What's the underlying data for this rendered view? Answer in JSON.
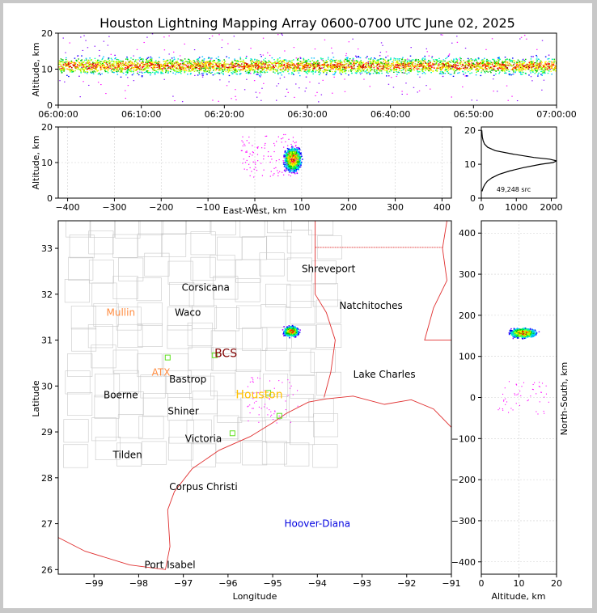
{
  "title": "Houston Lightning Mapping Array 0600-0700 UTC June 02, 2025",
  "chart_data": [
    {
      "name": "altitude-time",
      "type": "scatter",
      "ylabel": "Altitude, km",
      "xlim": [
        "06:00:00",
        "07:00:00"
      ],
      "ylim": [
        0,
        20
      ],
      "xticks": [
        "06:00:00",
        "06:10:00",
        "06:20:00",
        "06:30:00",
        "06:40:00",
        "06:50:00",
        "07:00:00"
      ],
      "yticks": [
        "0",
        "10",
        "20"
      ],
      "band_altitude_km": [
        6,
        15
      ],
      "peak_altitude_km": 11
    },
    {
      "name": "altitude-eastwest",
      "type": "scatter",
      "xlabel": "East-West, km",
      "ylabel": "Altitude, km",
      "xlim": [
        -420,
        420
      ],
      "ylim": [
        0,
        20
      ],
      "xticks": [
        "−400",
        "−300",
        "−200",
        "−100",
        "0",
        "100",
        "200",
        "300",
        "400"
      ],
      "yticks": [
        "0",
        "10",
        "20"
      ],
      "cluster_east_west_km": [
        65,
        135
      ],
      "cluster_center_km": 80
    },
    {
      "name": "altitude-histogram",
      "type": "line",
      "xlim": [
        0,
        2150
      ],
      "ylim": [
        0,
        21
      ],
      "xticks": [
        "0",
        "1000",
        "2000"
      ],
      "yticks": [
        "0",
        "10",
        "20"
      ],
      "annotation": "49,248 src",
      "altitude_km": [
        2,
        3,
        4,
        5,
        6,
        7,
        8,
        9,
        10,
        10.5,
        11,
        11.5,
        12,
        13,
        14,
        15,
        16,
        17,
        18,
        19,
        20
      ],
      "source_counts": [
        20,
        50,
        100,
        170,
        300,
        500,
        800,
        1200,
        1700,
        2050,
        2150,
        1950,
        1500,
        900,
        400,
        180,
        90,
        50,
        30,
        20,
        15
      ]
    },
    {
      "name": "plan-view-map",
      "type": "scatter",
      "xlabel": "Longitude",
      "ylabel": "Latitude",
      "xlim": [
        -99.8,
        -91
      ],
      "ylim": [
        25.9,
        33.6
      ],
      "xticks": [
        "−99",
        "−98",
        "−97",
        "−96",
        "−95",
        "−94",
        "−93",
        "−92",
        "−91"
      ],
      "yticks": [
        "26",
        "27",
        "28",
        "29",
        "30",
        "31",
        "32",
        "33"
      ],
      "storm_center": {
        "lon": -94.6,
        "lat": 31.2
      },
      "cities": [
        {
          "name": "Shreveport",
          "lon": -93.75,
          "lat": 32.55,
          "color": "#000000"
        },
        {
          "name": "Corsicana",
          "lon": -96.5,
          "lat": 32.15,
          "color": "#000000"
        },
        {
          "name": "Natchitoches",
          "lon": -92.8,
          "lat": 31.75,
          "color": "#000000"
        },
        {
          "name": "Mullin",
          "lon": -98.4,
          "lat": 31.6,
          "color": "#ff8c40"
        },
        {
          "name": "Waco",
          "lon": -96.9,
          "lat": 31.6,
          "color": "#000000"
        },
        {
          "name": "BCS",
          "lon": -96.05,
          "lat": 30.7,
          "color": "#800000"
        },
        {
          "name": "ATX",
          "lon": -97.5,
          "lat": 30.3,
          "color": "#ff8c40"
        },
        {
          "name": "Bastrop",
          "lon": -96.9,
          "lat": 30.15,
          "color": "#000000"
        },
        {
          "name": "Lake Charles",
          "lon": -92.5,
          "lat": 30.25,
          "color": "#000000"
        },
        {
          "name": "Boerne",
          "lon": -98.4,
          "lat": 29.8,
          "color": "#000000"
        },
        {
          "name": "Houston",
          "lon": -95.3,
          "lat": 29.8,
          "color": "#ffc000"
        },
        {
          "name": "Shiner",
          "lon": -97.0,
          "lat": 29.45,
          "color": "#000000"
        },
        {
          "name": "Victoria",
          "lon": -96.55,
          "lat": 28.85,
          "color": "#000000"
        },
        {
          "name": "Tilden",
          "lon": -98.25,
          "lat": 28.5,
          "color": "#000000"
        },
        {
          "name": "Corpus Christi",
          "lon": -96.55,
          "lat": 27.8,
          "color": "#000000"
        },
        {
          "name": "Hoover-Diana",
          "lon": -94.0,
          "lat": 27.0,
          "color": "#0000e0"
        },
        {
          "name": "Port Isabel",
          "lon": -97.3,
          "lat": 26.1,
          "color": "#000000"
        }
      ],
      "stations": [
        {
          "lon": -97.35,
          "lat": 30.62
        },
        {
          "lon": -96.3,
          "lat": 30.67
        },
        {
          "lon": -95.9,
          "lat": 28.97
        },
        {
          "lon": -94.85,
          "lat": 29.35
        },
        {
          "lon": -95.1,
          "lat": 29.85
        }
      ]
    },
    {
      "name": "northsouth-altitude",
      "type": "scatter",
      "xlabel": "Altitude, km",
      "ylabel": "North-South, km",
      "xlim": [
        0,
        20
      ],
      "ylim": [
        -430,
        430
      ],
      "xticks": [
        "0",
        "10",
        "20"
      ],
      "yticks": [
        "−400",
        "−300",
        "−200",
        "−100",
        "0",
        "100",
        "200",
        "300",
        "400"
      ],
      "cluster_north_south_km": [
        130,
        185
      ],
      "cluster_center_km": 158
    }
  ]
}
